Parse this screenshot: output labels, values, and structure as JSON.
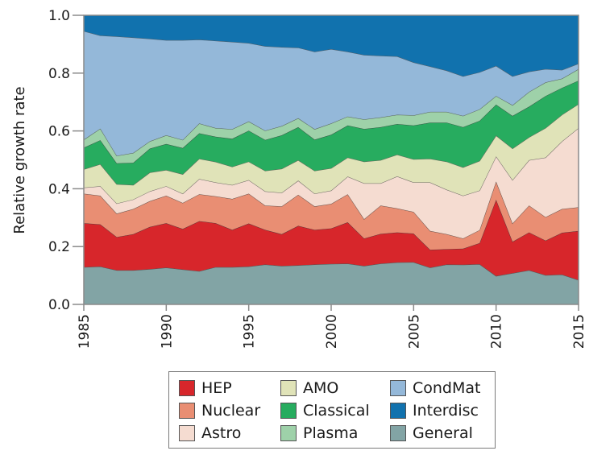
{
  "chart_data": {
    "type": "area",
    "stacked": true,
    "title": "",
    "xlabel": "",
    "ylabel": "Relative growth rate",
    "xlim": [
      1985,
      2015
    ],
    "ylim": [
      0,
      1.0
    ],
    "x_ticks": [
      "1985",
      "1990",
      "1995",
      "2000",
      "2005",
      "2010",
      "2015"
    ],
    "y_ticks": [
      "0.0",
      "0.2",
      "0.4",
      "0.6",
      "0.8",
      "1.0"
    ],
    "grid": false,
    "legend_position": "bottom",
    "x": [
      1985,
      1986,
      1987,
      1988,
      1989,
      1990,
      1991,
      1992,
      1993,
      1994,
      1995,
      1996,
      1997,
      1998,
      1999,
      2000,
      2001,
      2002,
      2003,
      2004,
      2005,
      2006,
      2007,
      2008,
      2009,
      2010,
      2011,
      2012,
      2013,
      2014,
      2015
    ],
    "series": [
      {
        "name": "General",
        "color": "#82a4a5",
        "values": [
          0.129,
          0.131,
          0.118,
          0.118,
          0.122,
          0.127,
          0.121,
          0.115,
          0.129,
          0.129,
          0.131,
          0.138,
          0.133,
          0.135,
          0.138,
          0.14,
          0.141,
          0.133,
          0.141,
          0.145,
          0.146,
          0.127,
          0.138,
          0.137,
          0.139,
          0.098,
          0.108,
          0.118,
          0.101,
          0.103,
          0.084
        ]
      },
      {
        "name": "HEP",
        "color": "#d7262b",
        "values": [
          0.152,
          0.146,
          0.115,
          0.125,
          0.146,
          0.154,
          0.14,
          0.173,
          0.152,
          0.129,
          0.149,
          0.12,
          0.11,
          0.137,
          0.12,
          0.123,
          0.143,
          0.095,
          0.103,
          0.104,
          0.099,
          0.062,
          0.053,
          0.056,
          0.073,
          0.264,
          0.109,
          0.131,
          0.12,
          0.145,
          0.17
        ]
      },
      {
        "name": "Nuclear",
        "color": "#e98e73",
        "values": [
          0.102,
          0.099,
          0.081,
          0.087,
          0.089,
          0.095,
          0.09,
          0.093,
          0.093,
          0.107,
          0.103,
          0.084,
          0.096,
          0.107,
          0.081,
          0.085,
          0.097,
          0.067,
          0.098,
          0.083,
          0.075,
          0.065,
          0.052,
          0.035,
          0.045,
          0.063,
          0.063,
          0.093,
          0.081,
          0.082,
          0.082
        ]
      },
      {
        "name": "Astro",
        "color": "#f5dcd1",
        "values": [
          0.021,
          0.033,
          0.035,
          0.033,
          0.034,
          0.033,
          0.032,
          0.053,
          0.048,
          0.048,
          0.047,
          0.049,
          0.047,
          0.049,
          0.044,
          0.046,
          0.061,
          0.124,
          0.077,
          0.111,
          0.102,
          0.168,
          0.154,
          0.148,
          0.137,
          0.087,
          0.15,
          0.157,
          0.206,
          0.234,
          0.274
        ]
      },
      {
        "name": "AMO",
        "color": "#e0e3b8",
        "values": [
          0.063,
          0.076,
          0.067,
          0.05,
          0.065,
          0.056,
          0.067,
          0.07,
          0.071,
          0.063,
          0.064,
          0.071,
          0.083,
          0.071,
          0.079,
          0.077,
          0.066,
          0.075,
          0.08,
          0.075,
          0.08,
          0.082,
          0.097,
          0.098,
          0.102,
          0.072,
          0.109,
          0.079,
          0.102,
          0.092,
          0.083
        ]
      },
      {
        "name": "Classical",
        "color": "#27ac5f",
        "values": [
          0.075,
          0.083,
          0.072,
          0.077,
          0.083,
          0.09,
          0.091,
          0.088,
          0.087,
          0.097,
          0.107,
          0.107,
          0.116,
          0.114,
          0.108,
          0.116,
          0.111,
          0.113,
          0.114,
          0.106,
          0.117,
          0.125,
          0.135,
          0.139,
          0.139,
          0.107,
          0.113,
          0.106,
          0.111,
          0.093,
          0.081
        ]
      },
      {
        "name": "Plasma",
        "color": "#9ed1a9",
        "values": [
          0.028,
          0.04,
          0.026,
          0.034,
          0.025,
          0.03,
          0.028,
          0.034,
          0.03,
          0.033,
          0.032,
          0.032,
          0.032,
          0.031,
          0.036,
          0.039,
          0.031,
          0.033,
          0.034,
          0.032,
          0.035,
          0.037,
          0.037,
          0.039,
          0.04,
          0.03,
          0.037,
          0.051,
          0.047,
          0.032,
          0.04
        ]
      },
      {
        "name": "CondMat",
        "color": "#94b8d9",
        "values": [
          0.375,
          0.322,
          0.413,
          0.399,
          0.355,
          0.329,
          0.345,
          0.29,
          0.302,
          0.302,
          0.271,
          0.292,
          0.273,
          0.244,
          0.268,
          0.257,
          0.224,
          0.223,
          0.213,
          0.202,
          0.183,
          0.157,
          0.143,
          0.137,
          0.128,
          0.104,
          0.1,
          0.07,
          0.046,
          0.03,
          0.019
        ]
      },
      {
        "name": "Interdisc",
        "color": "#1172ae",
        "values": [
          0.055,
          0.07,
          0.073,
          0.077,
          0.081,
          0.086,
          0.086,
          0.084,
          0.088,
          0.092,
          0.096,
          0.107,
          0.11,
          0.112,
          0.126,
          0.117,
          0.126,
          0.137,
          0.14,
          0.142,
          0.163,
          0.177,
          0.191,
          0.211,
          0.197,
          0.175,
          0.211,
          0.195,
          0.186,
          0.189,
          0.167
        ]
      }
    ],
    "legend": [
      {
        "name": "HEP",
        "color": "#d7262b"
      },
      {
        "name": "Nuclear",
        "color": "#e98e73"
      },
      {
        "name": "Astro",
        "color": "#f5dcd1"
      },
      {
        "name": "AMO",
        "color": "#e0e3b8"
      },
      {
        "name": "Classical",
        "color": "#27ac5f"
      },
      {
        "name": "Plasma",
        "color": "#9ed1a9"
      },
      {
        "name": "CondMat",
        "color": "#94b8d9"
      },
      {
        "name": "Interdisc",
        "color": "#1172ae"
      },
      {
        "name": "General",
        "color": "#82a4a5"
      }
    ]
  }
}
